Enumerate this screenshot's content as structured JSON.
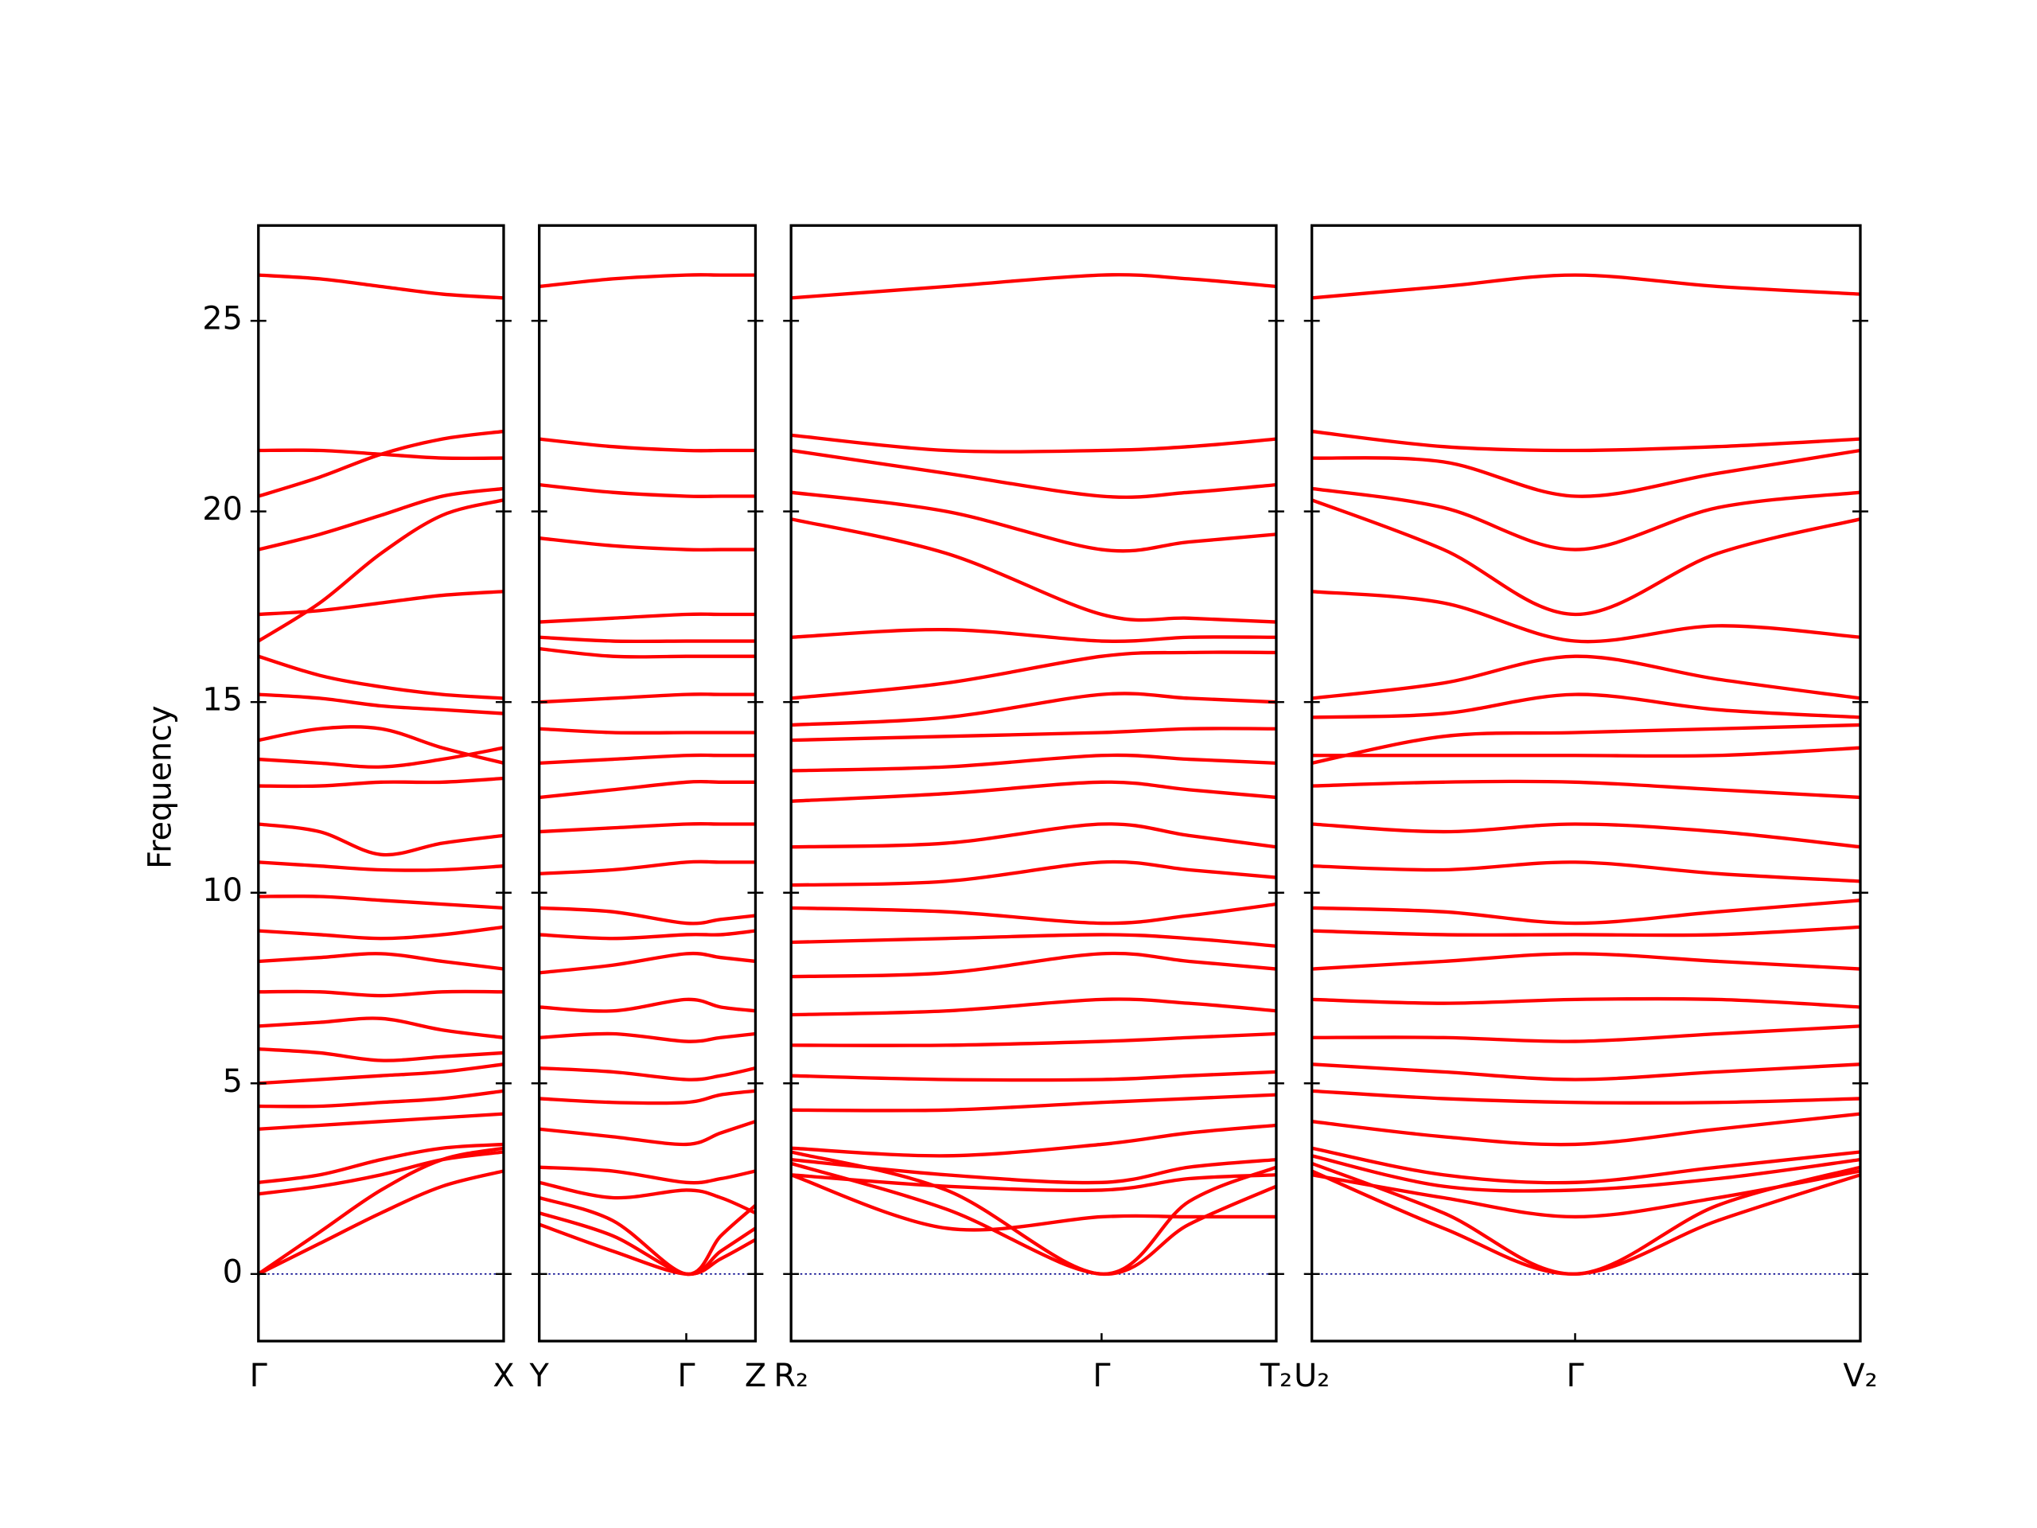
{
  "chart_data": {
    "type": "line",
    "ylabel": "Frequency",
    "color": "#ff0000",
    "ylim": [
      -1.76,
      27.5
    ],
    "yticks": [
      0,
      5,
      10,
      15,
      20,
      25
    ],
    "reference_line": {
      "value": 0,
      "color": "#00008b"
    },
    "panels": [
      {
        "xlim": [
          0,
          1
        ],
        "xticks": [
          {
            "value": 0,
            "label": "Γ"
          },
          {
            "value": 1,
            "label": "X"
          }
        ],
        "x": [
          0,
          0.25,
          0.5,
          0.75,
          1
        ],
        "series": [
          {
            "values": [
              26.2,
              26.1,
              25.9,
              25.7,
              25.6
            ]
          },
          {
            "values": [
              21.6,
              21.6,
              21.5,
              21.4,
              21.4
            ]
          },
          {
            "values": [
              20.4,
              20.9,
              21.5,
              21.9,
              22.1
            ]
          },
          {
            "values": [
              19.0,
              19.4,
              19.9,
              20.4,
              20.6
            ]
          },
          {
            "values": [
              16.6,
              17.6,
              18.9,
              19.9,
              20.3
            ]
          },
          {
            "values": [
              17.3,
              17.4,
              17.6,
              17.8,
              17.9
            ]
          },
          {
            "values": [
              16.2,
              15.7,
              15.4,
              15.2,
              15.1
            ]
          },
          {
            "values": [
              15.2,
              15.1,
              14.9,
              14.8,
              14.7
            ]
          },
          {
            "values": [
              14.0,
              14.3,
              14.3,
              13.8,
              13.4
            ]
          },
          {
            "values": [
              13.5,
              13.4,
              13.3,
              13.5,
              13.8
            ]
          },
          {
            "values": [
              12.8,
              12.8,
              12.9,
              12.9,
              13.0
            ]
          },
          {
            "values": [
              11.8,
              11.6,
              11.0,
              11.3,
              11.5
            ]
          },
          {
            "values": [
              10.8,
              10.7,
              10.6,
              10.6,
              10.7
            ]
          },
          {
            "values": [
              9.9,
              9.9,
              9.8,
              9.7,
              9.6
            ]
          },
          {
            "values": [
              9.0,
              8.9,
              8.8,
              8.9,
              9.1
            ]
          },
          {
            "values": [
              8.2,
              8.3,
              8.4,
              8.2,
              8.0
            ]
          },
          {
            "values": [
              7.4,
              7.4,
              7.3,
              7.4,
              7.4
            ]
          },
          {
            "values": [
              6.5,
              6.6,
              6.7,
              6.4,
              6.2
            ]
          },
          {
            "values": [
              5.9,
              5.8,
              5.6,
              5.7,
              5.8
            ]
          },
          {
            "values": [
              5.0,
              5.1,
              5.2,
              5.3,
              5.5
            ]
          },
          {
            "values": [
              4.4,
              4.4,
              4.5,
              4.6,
              4.8
            ]
          },
          {
            "values": [
              3.8,
              3.9,
              4.0,
              4.1,
              4.2
            ]
          },
          {
            "values": [
              2.4,
              2.6,
              3.0,
              3.3,
              3.4
            ]
          },
          {
            "values": [
              2.1,
              2.3,
              2.6,
              3.0,
              3.2
            ]
          },
          {
            "values": [
              0,
              1.1,
              2.2,
              3.0,
              3.3
            ]
          },
          {
            "values": [
              0,
              0.8,
              1.6,
              2.3,
              2.7
            ]
          }
        ]
      },
      {
        "xlim": [
          0,
          1
        ],
        "xticks": [
          {
            "value": 0,
            "label": "Y"
          },
          {
            "value": 0.68,
            "label": "Γ"
          },
          {
            "value": 1,
            "label": "Z"
          }
        ],
        "x": [
          0,
          0.34,
          0.68,
          0.84,
          1
        ],
        "series": [
          {
            "values": [
              25.9,
              26.1,
              26.2,
              26.2,
              26.2
            ]
          },
          {
            "values": [
              21.9,
              21.7,
              21.6,
              21.6,
              21.6
            ]
          },
          {
            "values": [
              20.7,
              20.5,
              20.4,
              20.4,
              20.4
            ]
          },
          {
            "values": [
              19.3,
              19.1,
              19.0,
              19.0,
              19.0
            ]
          },
          {
            "values": [
              17.1,
              17.2,
              17.3,
              17.3,
              17.3
            ]
          },
          {
            "values": [
              16.7,
              16.6,
              16.6,
              16.6,
              16.6
            ]
          },
          {
            "values": [
              16.4,
              16.2,
              16.2,
              16.2,
              16.2
            ]
          },
          {
            "values": [
              15.0,
              15.1,
              15.2,
              15.2,
              15.2
            ]
          },
          {
            "values": [
              14.3,
              14.2,
              14.2,
              14.2,
              14.2
            ]
          },
          {
            "values": [
              13.4,
              13.5,
              13.6,
              13.6,
              13.6
            ]
          },
          {
            "values": [
              12.5,
              12.7,
              12.9,
              12.9,
              12.9
            ]
          },
          {
            "values": [
              11.6,
              11.7,
              11.8,
              11.8,
              11.8
            ]
          },
          {
            "values": [
              10.5,
              10.6,
              10.8,
              10.8,
              10.8
            ]
          },
          {
            "values": [
              9.6,
              9.5,
              9.2,
              9.3,
              9.4
            ]
          },
          {
            "values": [
              8.9,
              8.8,
              8.9,
              8.9,
              9.0
            ]
          },
          {
            "values": [
              7.9,
              8.1,
              8.4,
              8.3,
              8.2
            ]
          },
          {
            "values": [
              7.0,
              6.9,
              7.2,
              7.0,
              6.9
            ]
          },
          {
            "values": [
              6.2,
              6.3,
              6.1,
              6.2,
              6.3
            ]
          },
          {
            "values": [
              5.4,
              5.3,
              5.1,
              5.2,
              5.4
            ]
          },
          {
            "values": [
              4.6,
              4.5,
              4.5,
              4.7,
              4.8
            ]
          },
          {
            "values": [
              3.8,
              3.6,
              3.4,
              3.7,
              4.0
            ]
          },
          {
            "values": [
              2.8,
              2.7,
              2.4,
              2.5,
              2.7
            ]
          },
          {
            "values": [
              2.4,
              2.0,
              2.2,
              2.0,
              1.6
            ]
          },
          {
            "values": [
              2.0,
              1.4,
              0,
              1.0,
              1.8
            ]
          },
          {
            "values": [
              1.6,
              1.0,
              0,
              0.6,
              1.2
            ]
          },
          {
            "values": [
              1.3,
              0.6,
              0,
              0.4,
              0.9
            ]
          }
        ]
      },
      {
        "xlim": [
          0,
          1
        ],
        "xticks": [
          {
            "value": 0,
            "label": "R₂"
          },
          {
            "value": 0.64,
            "label": "Γ"
          },
          {
            "value": 1,
            "label": "T₂"
          }
        ],
        "x": [
          0,
          0.32,
          0.64,
          0.82,
          1
        ],
        "series": [
          {
            "values": [
              25.6,
              25.9,
              26.2,
              26.1,
              25.9
            ]
          },
          {
            "values": [
              22.0,
              21.6,
              21.6,
              21.7,
              21.9
            ]
          },
          {
            "values": [
              21.6,
              21.0,
              20.4,
              20.5,
              20.7
            ]
          },
          {
            "values": [
              20.5,
              20.0,
              19.0,
              19.2,
              19.4
            ]
          },
          {
            "values": [
              19.8,
              18.9,
              17.3,
              17.2,
              17.1
            ]
          },
          {
            "values": [
              16.7,
              16.9,
              16.6,
              16.7,
              16.7
            ]
          },
          {
            "values": [
              15.1,
              15.5,
              16.2,
              16.3,
              16.3
            ]
          },
          {
            "values": [
              14.4,
              14.6,
              15.2,
              15.1,
              15.0
            ]
          },
          {
            "values": [
              14.0,
              14.1,
              14.2,
              14.3,
              14.3
            ]
          },
          {
            "values": [
              13.2,
              13.3,
              13.6,
              13.5,
              13.4
            ]
          },
          {
            "values": [
              12.4,
              12.6,
              12.9,
              12.7,
              12.5
            ]
          },
          {
            "values": [
              11.2,
              11.3,
              11.8,
              11.5,
              11.2
            ]
          },
          {
            "values": [
              10.2,
              10.3,
              10.8,
              10.6,
              10.4
            ]
          },
          {
            "values": [
              9.6,
              9.5,
              9.2,
              9.4,
              9.7
            ]
          },
          {
            "values": [
              8.7,
              8.8,
              8.9,
              8.8,
              8.6
            ]
          },
          {
            "values": [
              7.8,
              7.9,
              8.4,
              8.2,
              8.0
            ]
          },
          {
            "values": [
              6.8,
              6.9,
              7.2,
              7.1,
              6.9
            ]
          },
          {
            "values": [
              6.0,
              6.0,
              6.1,
              6.2,
              6.3
            ]
          },
          {
            "values": [
              5.2,
              5.1,
              5.1,
              5.2,
              5.3
            ]
          },
          {
            "values": [
              4.3,
              4.3,
              4.5,
              4.6,
              4.7
            ]
          },
          {
            "values": [
              3.3,
              3.1,
              3.4,
              3.7,
              3.9
            ]
          },
          {
            "values": [
              3.0,
              2.6,
              2.4,
              2.8,
              3.0
            ]
          },
          {
            "values": [
              2.6,
              2.3,
              2.2,
              2.5,
              2.6
            ]
          },
          {
            "values": [
              3.2,
              2.2,
              0,
              1.9,
              2.8
            ]
          },
          {
            "values": [
              2.9,
              1.7,
              0,
              1.3,
              2.3
            ]
          },
          {
            "values": [
              2.6,
              1.2,
              1.5,
              1.5,
              1.5
            ]
          }
        ]
      },
      {
        "xlim": [
          0,
          1
        ],
        "xticks": [
          {
            "value": 0,
            "label": "U₂"
          },
          {
            "value": 0.48,
            "label": "Γ"
          },
          {
            "value": 1,
            "label": "V₂"
          }
        ],
        "x": [
          0,
          0.24,
          0.48,
          0.74,
          1
        ],
        "series": [
          {
            "values": [
              25.6,
              25.9,
              26.2,
              25.9,
              25.7
            ]
          },
          {
            "values": [
              22.1,
              21.7,
              21.6,
              21.7,
              21.9
            ]
          },
          {
            "values": [
              21.4,
              21.3,
              20.4,
              21.0,
              21.6
            ]
          },
          {
            "values": [
              20.6,
              20.1,
              19.0,
              20.1,
              20.5
            ]
          },
          {
            "values": [
              20.3,
              19.0,
              17.3,
              18.9,
              19.8
            ]
          },
          {
            "values": [
              17.9,
              17.6,
              16.6,
              17.0,
              16.7
            ]
          },
          {
            "values": [
              15.1,
              15.5,
              16.2,
              15.6,
              15.1
            ]
          },
          {
            "values": [
              14.6,
              14.7,
              15.2,
              14.8,
              14.6
            ]
          },
          {
            "values": [
              13.4,
              14.1,
              14.2,
              14.3,
              14.4
            ]
          },
          {
            "values": [
              13.6,
              13.6,
              13.6,
              13.6,
              13.8
            ]
          },
          {
            "values": [
              12.8,
              12.9,
              12.9,
              12.7,
              12.5
            ]
          },
          {
            "values": [
              11.8,
              11.6,
              11.8,
              11.6,
              11.2
            ]
          },
          {
            "values": [
              10.7,
              10.6,
              10.8,
              10.5,
              10.3
            ]
          },
          {
            "values": [
              9.6,
              9.5,
              9.2,
              9.5,
              9.8
            ]
          },
          {
            "values": [
              9.0,
              8.9,
              8.9,
              8.9,
              9.1
            ]
          },
          {
            "values": [
              8.0,
              8.2,
              8.4,
              8.2,
              8.0
            ]
          },
          {
            "values": [
              7.2,
              7.1,
              7.2,
              7.2,
              7.0
            ]
          },
          {
            "values": [
              6.2,
              6.2,
              6.1,
              6.3,
              6.5
            ]
          },
          {
            "values": [
              5.5,
              5.3,
              5.1,
              5.3,
              5.5
            ]
          },
          {
            "values": [
              4.8,
              4.6,
              4.5,
              4.5,
              4.6
            ]
          },
          {
            "values": [
              4.0,
              3.6,
              3.4,
              3.8,
              4.2
            ]
          },
          {
            "values": [
              3.3,
              2.6,
              2.4,
              2.8,
              3.2
            ]
          },
          {
            "values": [
              3.1,
              2.3,
              2.2,
              2.5,
              3.0
            ]
          },
          {
            "values": [
              2.9,
              1.6,
              0,
              1.8,
              2.8
            ]
          },
          {
            "values": [
              2.7,
              1.2,
              0,
              1.4,
              2.6
            ]
          },
          {
            "values": [
              2.6,
              2.0,
              1.5,
              2.0,
              2.7
            ]
          }
        ]
      }
    ]
  }
}
